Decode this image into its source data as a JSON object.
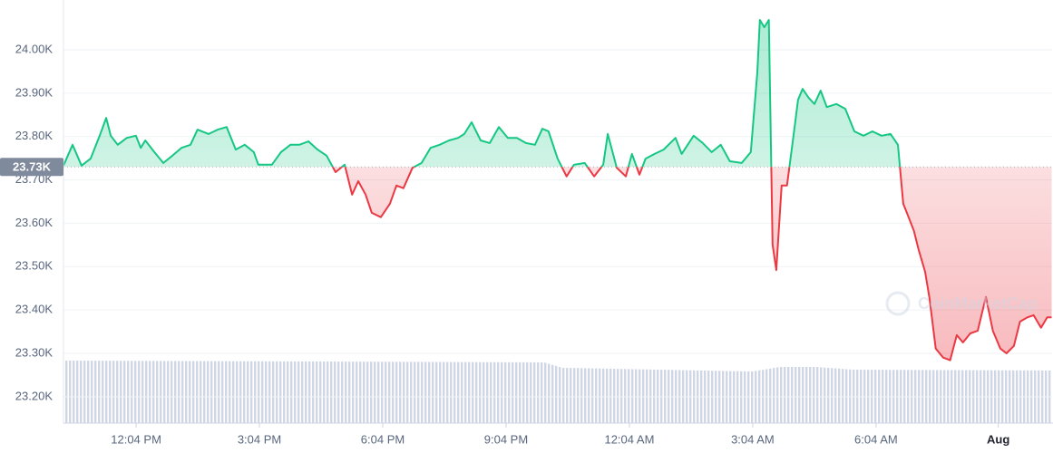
{
  "chart_data": {
    "type": "line",
    "watermark": "CoinMarketCap",
    "baseline": {
      "value": 23730,
      "label": "23.73K"
    },
    "colors": {
      "up": "#16c784",
      "down": "#ea3943"
    },
    "grid": true,
    "xlim": [
      10.3,
      34.35
    ],
    "ylim": [
      23139,
      24115
    ],
    "yticks": [
      {
        "value": 24000,
        "label": "24.00K"
      },
      {
        "value": 23900,
        "label": "23.90K"
      },
      {
        "value": 23800,
        "label": "23.80K"
      },
      {
        "value": 23700,
        "label": "23.70K"
      },
      {
        "value": 23600,
        "label": "23.60K"
      },
      {
        "value": 23500,
        "label": "23.50K"
      },
      {
        "value": 23400,
        "label": "23.40K"
      },
      {
        "value": 23300,
        "label": "23.30K"
      },
      {
        "value": 23200,
        "label": "23.20K"
      }
    ],
    "xticks": [
      {
        "value": 12.067,
        "label": "12:04 PM"
      },
      {
        "value": 15.067,
        "label": "3:04 PM"
      },
      {
        "value": 18.067,
        "label": "6:04 PM"
      },
      {
        "value": 21.067,
        "label": "9:04 PM"
      },
      {
        "value": 24.067,
        "label": "12:04 AM"
      },
      {
        "value": 27.067,
        "label": "3:04 AM"
      },
      {
        "value": 30.067,
        "label": "6:04 AM"
      },
      {
        "value": 33.04,
        "label": "Aug"
      }
    ],
    "x": [
      10.3,
      10.52,
      10.74,
      10.96,
      11.18,
      11.34,
      11.45,
      11.62,
      11.84,
      12.06,
      12.18,
      12.29,
      12.51,
      12.73,
      12.95,
      13.17,
      13.39,
      13.56,
      13.83,
      14.05,
      14.27,
      14.49,
      14.71,
      14.93,
      15.04,
      15.37,
      15.59,
      15.82,
      16.04,
      16.26,
      16.48,
      16.7,
      16.92,
      17.14,
      17.32,
      17.47,
      17.65,
      17.8,
      18.02,
      18.24,
      18.4,
      18.57,
      18.79,
      19.01,
      19.23,
      19.45,
      19.68,
      19.9,
      20.05,
      20.23,
      20.45,
      20.67,
      20.89,
      21.11,
      21.33,
      21.55,
      21.77,
      21.95,
      22.1,
      22.32,
      22.54,
      22.72,
      22.98,
      23.21,
      23.43,
      23.54,
      23.76,
      23.98,
      24.13,
      24.31,
      24.46,
      24.68,
      24.9,
      25.19,
      25.34,
      25.63,
      25.85,
      26.07,
      26.29,
      26.51,
      26.8,
      27.02,
      27.18,
      27.24,
      27.35,
      27.46,
      27.55,
      27.64,
      27.77,
      27.9,
      28.06,
      28.17,
      28.28,
      28.43,
      28.57,
      28.72,
      28.87,
      29.1,
      29.32,
      29.54,
      29.76,
      29.98,
      30.2,
      30.42,
      30.6,
      30.73,
      30.86,
      30.99,
      31.1,
      31.26,
      31.37,
      31.52,
      31.7,
      31.87,
      32.03,
      32.18,
      32.36,
      32.54,
      32.74,
      32.91,
      33.09,
      33.24,
      33.42,
      33.57,
      33.75,
      33.9,
      34.08,
      34.23,
      34.34
    ],
    "values": [
      23733,
      23781,
      23733,
      23749,
      23802,
      23843,
      23802,
      23781,
      23797,
      23802,
      23774,
      23791,
      23764,
      23739,
      23756,
      23774,
      23781,
      23816,
      23806,
      23816,
      23822,
      23770,
      23781,
      23764,
      23735,
      23735,
      23764,
      23781,
      23781,
      23789,
      23770,
      23756,
      23718,
      23735,
      23666,
      23697,
      23666,
      23624,
      23614,
      23645,
      23687,
      23681,
      23728,
      23739,
      23774,
      23781,
      23791,
      23797,
      23806,
      23833,
      23791,
      23785,
      23822,
      23797,
      23797,
      23785,
      23781,
      23818,
      23812,
      23749,
      23708,
      23735,
      23739,
      23708,
      23735,
      23806,
      23728,
      23708,
      23760,
      23712,
      23749,
      23760,
      23770,
      23797,
      23760,
      23802,
      23785,
      23764,
      23781,
      23743,
      23739,
      23764,
      23948,
      24069,
      24052,
      24069,
      23551,
      23492,
      23687,
      23687,
      23802,
      23885,
      23910,
      23889,
      23875,
      23906,
      23868,
      23875,
      23864,
      23812,
      23802,
      23812,
      23802,
      23806,
      23781,
      23645,
      23614,
      23582,
      23540,
      23488,
      23426,
      23311,
      23290,
      23284,
      23342,
      23325,
      23346,
      23352,
      23430,
      23352,
      23311,
      23300,
      23317,
      23373,
      23383,
      23388,
      23359,
      23383,
      23383
    ]
  }
}
